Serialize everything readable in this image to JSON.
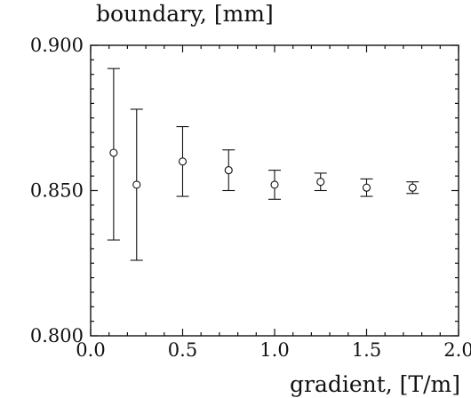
{
  "chart_data": {
    "type": "scatter",
    "title": "",
    "ylabel": "boundary, [mm]",
    "xlabel": "gradient, [T/m]",
    "xlim": [
      0.0,
      2.0
    ],
    "ylim": [
      0.8,
      0.9
    ],
    "xticks": [
      "0.0",
      "0.5",
      "1.0",
      "1.5",
      "2.0"
    ],
    "yticks": [
      "0.800",
      "0.850",
      "0.900"
    ],
    "grid": false,
    "legend": "none",
    "series": [
      {
        "marker": "open-circle",
        "x": [
          0.125,
          0.25,
          0.5,
          0.75,
          1.0,
          1.25,
          1.5,
          1.75
        ],
        "y": [
          0.863,
          0.852,
          0.86,
          0.857,
          0.852,
          0.853,
          0.851,
          0.851
        ],
        "err_low": [
          0.833,
          0.826,
          0.848,
          0.85,
          0.847,
          0.85,
          0.848,
          0.849
        ],
        "err_high": [
          0.892,
          0.878,
          0.872,
          0.864,
          0.857,
          0.856,
          0.854,
          0.853
        ]
      }
    ]
  }
}
